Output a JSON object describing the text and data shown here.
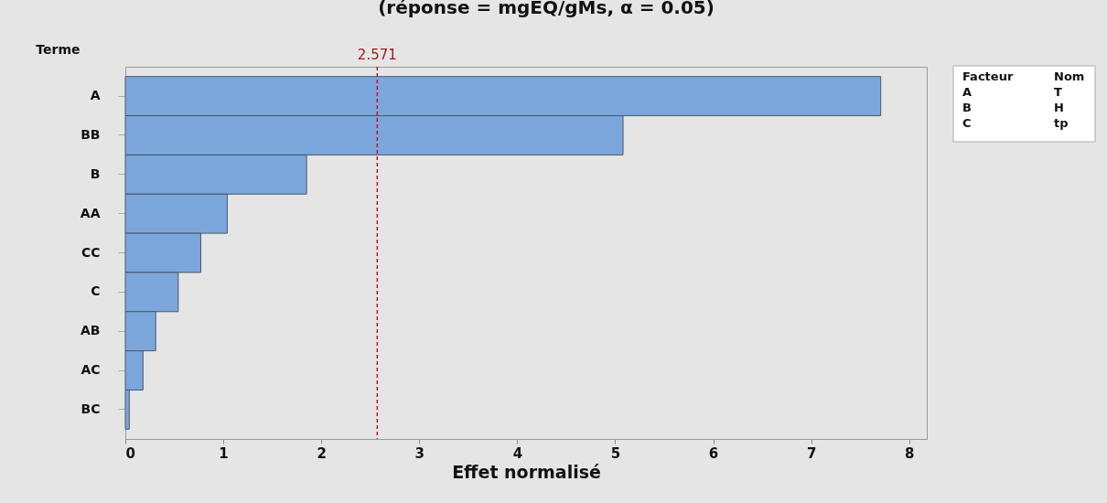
{
  "chart_data": {
    "type": "bar",
    "orientation": "horizontal",
    "title": "(réponse = mgEQ/gMs, α = 0.05)",
    "xlabel": "Effet normalisé",
    "ylabel": "Terme",
    "categories": [
      "A",
      "BB",
      "B",
      "AA",
      "CC",
      "C",
      "AB",
      "AC",
      "BC"
    ],
    "values": [
      7.71,
      5.08,
      1.85,
      1.04,
      0.77,
      0.54,
      0.31,
      0.18,
      0.04
    ],
    "color": "#7ba7dc",
    "xlim": [
      0,
      8.18
    ],
    "xticks": [
      0,
      1,
      2,
      3,
      4,
      5,
      6,
      7,
      8
    ],
    "grid": false,
    "ref_lines": [
      {
        "axis": "x",
        "value": 2.571,
        "label": "2.571",
        "color": "#c8102e",
        "line_style": "dashed"
      }
    ],
    "annotations": [
      "Facteur",
      "Nom",
      "A",
      "T",
      "B",
      "H",
      "C",
      "tp"
    ]
  }
}
